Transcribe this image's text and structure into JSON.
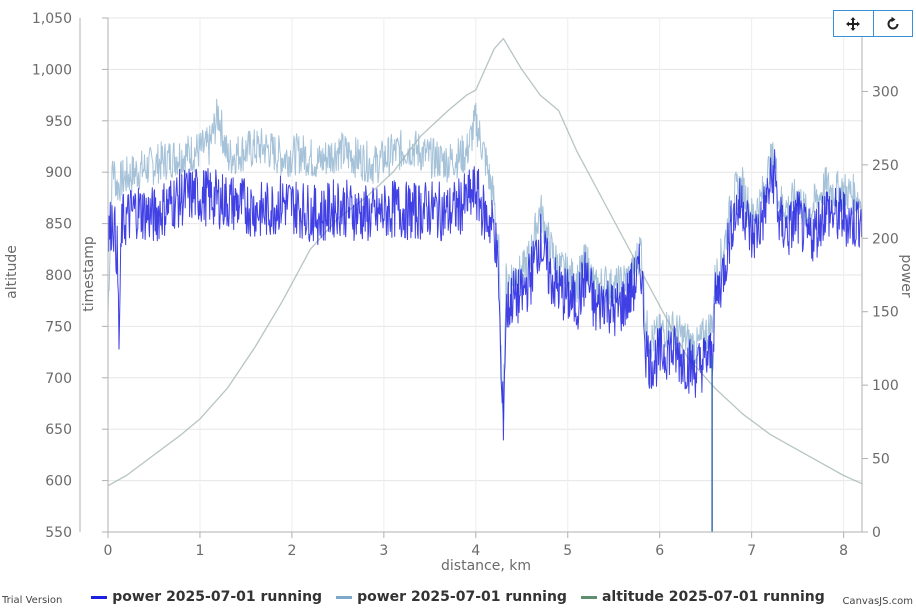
{
  "chart_data": {
    "type": "line",
    "xlabel": "distance, km",
    "ylabel_left_outer": "altitude",
    "ylabel_left_inner": "timestamp",
    "ylabel_right": "power",
    "xlim": [
      0,
      8.2
    ],
    "ylim_left": [
      550,
      1050
    ],
    "ylim_right": [
      0,
      350
    ],
    "x_ticks": [
      "0",
      "1",
      "2",
      "3",
      "4",
      "5",
      "6",
      "7",
      "8"
    ],
    "y_left_ticks": [
      "550",
      "600",
      "650",
      "700",
      "750",
      "800",
      "850",
      "900",
      "950",
      "1,000",
      "1,050"
    ],
    "y_right_ticks": [
      "0",
      "50",
      "100",
      "150",
      "200",
      "250",
      "300"
    ],
    "grid": true,
    "legend_position": "bottom",
    "crosshair_x": 6.57,
    "series": [
      {
        "name": "power 2025-07-01 running",
        "color": "#1f1fe0",
        "axis": "right",
        "x": [
          0.0,
          0.05,
          0.1,
          0.12,
          0.15,
          0.3,
          0.5,
          0.7,
          0.9,
          1.1,
          1.3,
          1.5,
          1.7,
          1.9,
          2.1,
          2.3,
          2.5,
          2.7,
          2.9,
          3.1,
          3.3,
          3.5,
          3.7,
          3.9,
          4.0,
          4.1,
          4.2,
          4.25,
          4.28,
          4.3,
          4.33,
          4.4,
          4.5,
          4.6,
          4.7,
          4.8,
          4.9,
          5.0,
          5.1,
          5.2,
          5.3,
          5.4,
          5.5,
          5.6,
          5.7,
          5.8,
          5.85,
          5.9,
          6.0,
          6.1,
          6.2,
          6.3,
          6.4,
          6.5,
          6.57,
          6.6,
          6.7,
          6.8,
          6.9,
          7.0,
          7.1,
          7.2,
          7.25,
          7.3,
          7.4,
          7.5,
          7.6,
          7.7,
          7.8,
          7.9,
          8.0,
          8.1,
          8.2
        ],
        "values": [
          200,
          215,
          190,
          130,
          210,
          220,
          215,
          225,
          230,
          228,
          225,
          222,
          218,
          225,
          220,
          215,
          222,
          218,
          215,
          220,
          218,
          220,
          217,
          225,
          232,
          215,
          208,
          170,
          90,
          80,
          150,
          160,
          160,
          175,
          200,
          175,
          165,
          160,
          155,
          175,
          150,
          160,
          150,
          155,
          165,
          180,
          125,
          115,
          120,
          125,
          120,
          115,
          110,
          118,
          120,
          155,
          180,
          215,
          225,
          200,
          210,
          235,
          245,
          210,
          205,
          215,
          200,
          205,
          220,
          215,
          215,
          210,
          215
        ]
      },
      {
        "name": "power 2025-07-01 running",
        "color": "#7fa8c9",
        "axis": "right",
        "x": [
          0.0,
          0.05,
          0.1,
          0.15,
          0.3,
          0.5,
          0.7,
          0.9,
          1.1,
          1.2,
          1.3,
          1.5,
          1.7,
          1.9,
          2.1,
          2.3,
          2.5,
          2.7,
          2.9,
          3.1,
          3.3,
          3.5,
          3.7,
          3.9,
          4.0,
          4.1,
          4.2,
          4.25,
          4.28,
          4.3,
          4.33,
          4.4,
          4.5,
          4.6,
          4.7,
          4.8,
          4.9,
          5.0,
          5.1,
          5.2,
          5.3,
          5.4,
          5.5,
          5.6,
          5.7,
          5.8,
          5.85,
          5.9,
          6.0,
          6.1,
          6.2,
          6.3,
          6.4,
          6.5,
          6.57,
          6.6,
          6.7,
          6.8,
          6.9,
          7.0,
          7.1,
          7.2,
          7.25,
          7.3,
          7.4,
          7.5,
          7.6,
          7.7,
          7.8,
          7.9,
          8.0,
          8.1,
          8.2
        ],
        "values": [
          150,
          250,
          235,
          240,
          245,
          250,
          255,
          258,
          262,
          285,
          255,
          260,
          262,
          255,
          258,
          252,
          260,
          255,
          250,
          258,
          262,
          255,
          252,
          258,
          280,
          255,
          225,
          190,
          100,
          90,
          170,
          175,
          175,
          190,
          220,
          195,
          180,
          175,
          170,
          185,
          165,
          170,
          165,
          170,
          175,
          195,
          140,
          130,
          135,
          140,
          135,
          130,
          125,
          135,
          140,
          170,
          195,
          230,
          235,
          215,
          225,
          250,
          255,
          225,
          220,
          230,
          215,
          225,
          235,
          232,
          232,
          230,
          225
        ]
      },
      {
        "name": "altitude 2025-07-01 running",
        "color": "#5e8f6e",
        "axis": "left",
        "x": [
          0.0,
          0.2,
          0.5,
          0.8,
          1.0,
          1.3,
          1.6,
          1.9,
          2.2,
          2.5,
          2.8,
          3.1,
          3.4,
          3.7,
          3.9,
          4.0,
          4.2,
          4.3,
          4.5,
          4.7,
          4.9,
          5.1,
          5.4,
          5.7,
          6.0,
          6.3,
          6.6,
          6.9,
          7.2,
          7.5,
          7.8,
          8.0,
          8.2
        ],
        "values": [
          595,
          605,
          625,
          645,
          660,
          690,
          730,
          775,
          825,
          855,
          875,
          900,
          935,
          960,
          975,
          980,
          1020,
          1030,
          1000,
          975,
          960,
          920,
          870,
          820,
          770,
          720,
          690,
          665,
          645,
          630,
          615,
          605,
          597
        ]
      }
    ]
  },
  "legend": [
    {
      "label": "power 2025-07-01 running",
      "color": "#1f1fe0"
    },
    {
      "label": "power 2025-07-01 running",
      "color": "#7fa8c9"
    },
    {
      "label": "altitude 2025-07-01 running",
      "color": "#5e8f6e"
    }
  ],
  "toolbar": {
    "pan_icon": "move-icon",
    "reset_icon": "reset-icon"
  },
  "watermark": {
    "left": "Trial Version",
    "right": "CanvasJS.com"
  }
}
